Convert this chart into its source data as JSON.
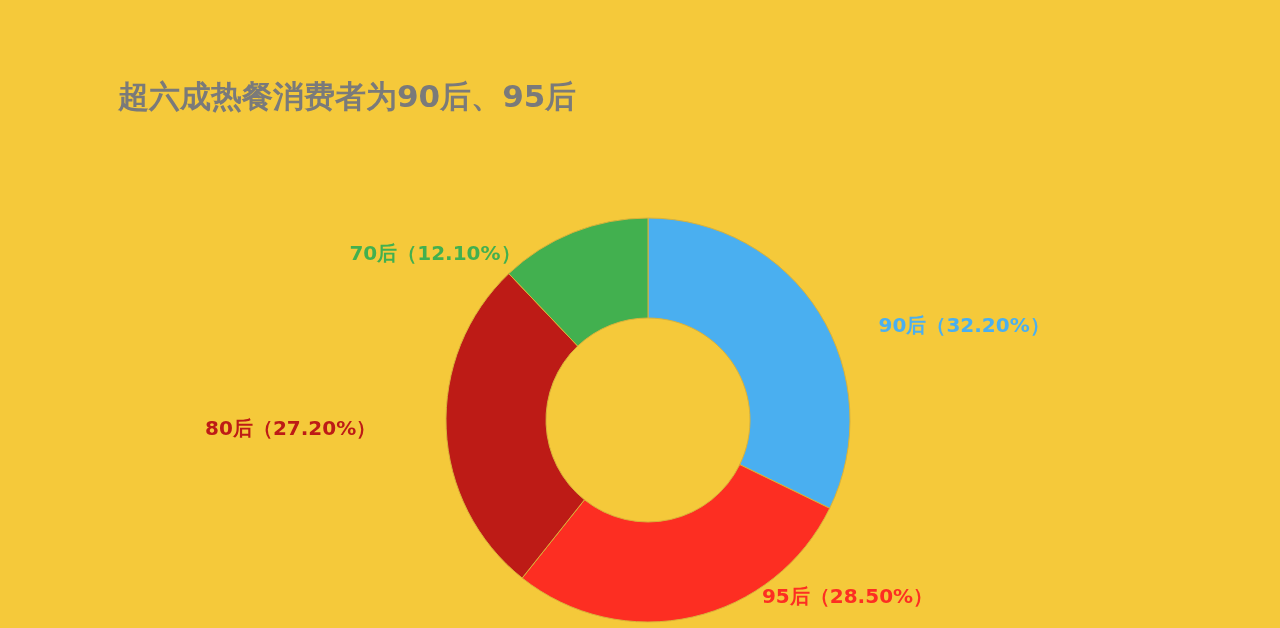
{
  "chart_data": {
    "type": "donut",
    "title": "超六成热餐消费者为90后、95后",
    "categories": [
      "90后",
      "95后",
      "80后",
      "70后"
    ],
    "values": [
      32.2,
      28.5,
      27.2,
      12.1
    ],
    "colors": [
      "#4aaff0",
      "#fd2e22",
      "#bd1b16",
      "#42b04f"
    ],
    "value_labels": [
      "（32.20%）",
      "（28.50%）",
      "（27.20%）",
      "（12.10%）"
    ],
    "legend": false
  }
}
